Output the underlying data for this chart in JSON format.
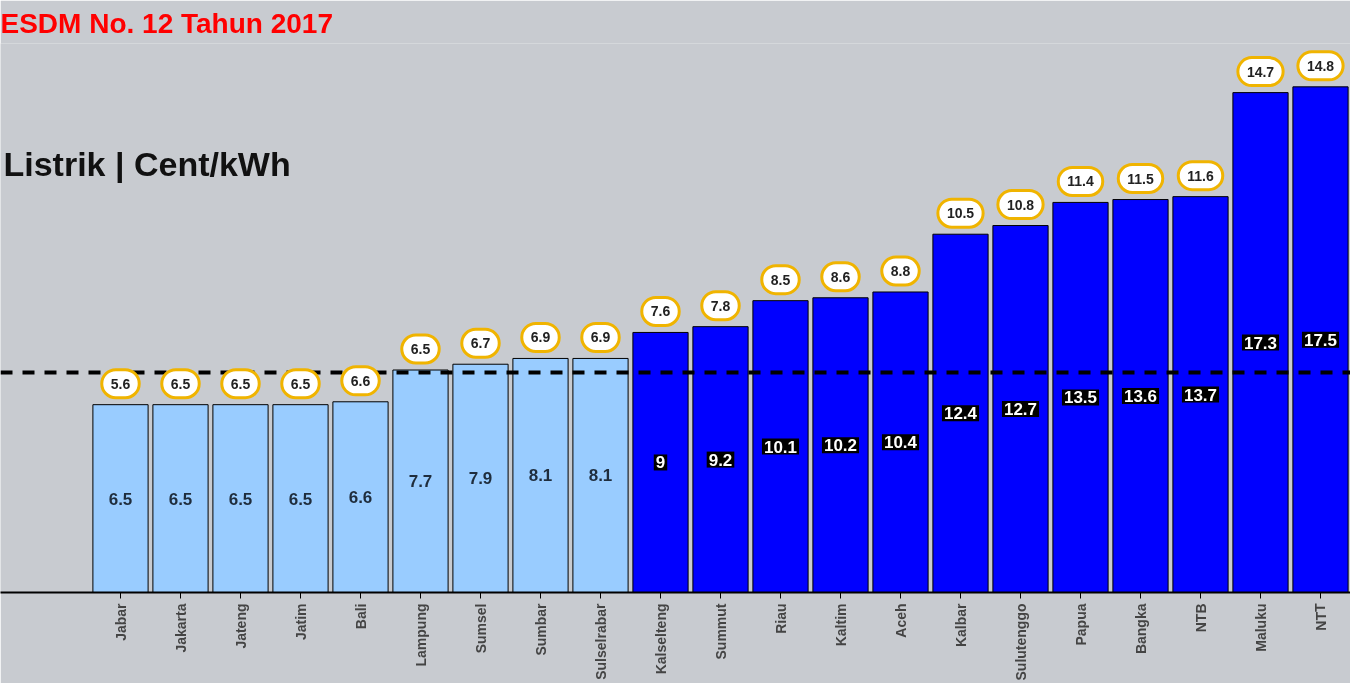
{
  "chart_data": {
    "type": "bar",
    "title": "ESDM No. 12 Tahun 2017",
    "subtitle": "Listrik | Cent/kWh",
    "categories": [
      "Jabar",
      "Jakarta",
      "Jateng",
      "Jatim",
      "Bali",
      "Lampung",
      "Sumsel",
      "Sumbar",
      "Sulselrabar",
      "Kalselteng",
      "Summut",
      "Riau",
      "Kaltim",
      "Aceh",
      "Kalbar",
      "Sulutenggo",
      "Papua",
      "Bangka",
      "NTB",
      "Maluku",
      "NTT"
    ],
    "values": [
      6.5,
      6.5,
      6.5,
      6.5,
      6.6,
      7.7,
      7.9,
      8.1,
      8.1,
      9,
      9.2,
      10.1,
      10.2,
      10.4,
      12.4,
      12.7,
      13.5,
      13.6,
      13.7,
      17.3,
      17.5
    ],
    "colors": [
      "#99ccff",
      "#99ccff",
      "#99ccff",
      "#99ccff",
      "#99ccff",
      "#99ccff",
      "#99ccff",
      "#99ccff",
      "#99ccff",
      "#0000ff",
      "#0000ff",
      "#0000ff",
      "#0000ff",
      "#0000ff",
      "#0000ff",
      "#0000ff",
      "#0000ff",
      "#0000ff",
      "#0000ff",
      "#0000ff",
      "#0000ff"
    ],
    "data_labels": true,
    "ylim": [
      0,
      19
    ],
    "ref_lines": [
      {
        "axis": "y",
        "value": 7.6,
        "line_style": "dashed",
        "color": "#000000"
      }
    ],
    "annotations": [
      "5.6",
      "6.5",
      "6.5",
      "6.5",
      "6.6",
      "6.5",
      "6.7",
      "6.9",
      "6.9",
      "7.6",
      "7.8",
      "8.5",
      "8.6",
      "8.8",
      "10.5",
      "10.8",
      "11.4",
      "11.5",
      "11.6",
      "14.7",
      "14.8"
    ]
  }
}
